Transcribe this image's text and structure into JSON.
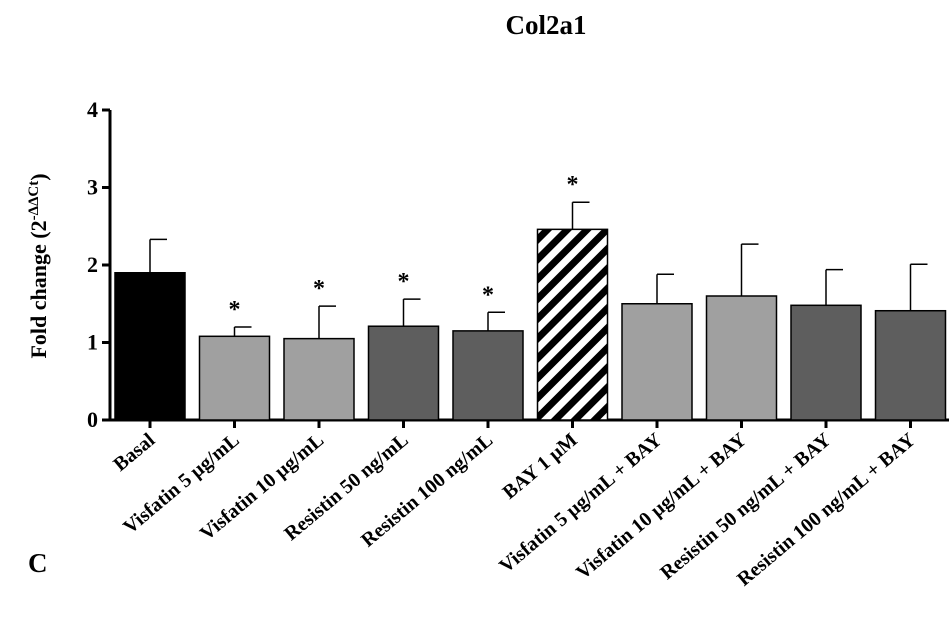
{
  "figure": {
    "panel_label": "C"
  },
  "chart_data": {
    "type": "bar",
    "title": "Col2a1",
    "ylabel": "Fold change (2",
    "ylabel_superscript": "-ΔΔCt",
    "ylabel_close": ")",
    "ylim": [
      0,
      4
    ],
    "yticks": [
      0,
      1,
      2,
      3,
      4
    ],
    "grid": false,
    "categories": [
      "Basal",
      "Visfatin 5  µg/mL",
      "Visfatin 10  µg/mL",
      "Resistin 50 ng/mL",
      "Resistin 100 ng/mL",
      "BAY 1 µM",
      "Visfatin 5  µg/mL + BAY",
      "Visfatin 10  µg/mL + BAY",
      "Resistin 50 ng/mL + BAY",
      "Resistin 100 ng/mL + BAY"
    ],
    "values": [
      1.9,
      1.08,
      1.05,
      1.21,
      1.15,
      2.46,
      1.5,
      1.6,
      1.48,
      1.41
    ],
    "errors": [
      0.43,
      0.12,
      0.42,
      0.35,
      0.24,
      0.35,
      0.38,
      0.67,
      0.46,
      0.6
    ],
    "significance": [
      "",
      "*",
      "*",
      "*",
      "*",
      "*",
      "",
      "",
      "",
      ""
    ],
    "bar_styles": [
      "black",
      "light",
      "light",
      "dark",
      "dark",
      "hatch",
      "light",
      "light",
      "dark",
      "dark"
    ],
    "colors": {
      "black": "#000000",
      "light": "#a0a0a0",
      "dark": "#5e5e5e",
      "hatch_fg": "#000000",
      "hatch_bg": "#ffffff",
      "outline": "#000000"
    }
  }
}
